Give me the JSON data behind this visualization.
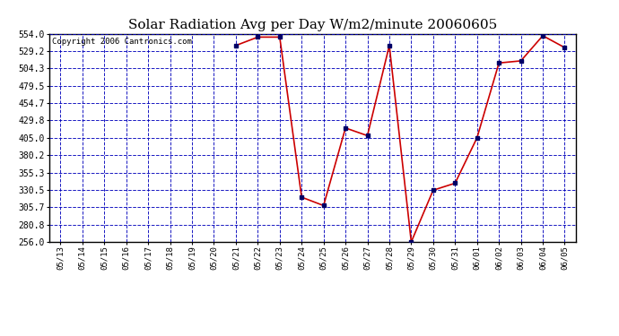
{
  "title": "Solar Radiation Avg per Day W/m2/minute 20060605",
  "copyright": "Copyright 2006 Cantronics.com",
  "dates": [
    "05/13",
    "05/14",
    "05/15",
    "05/16",
    "05/17",
    "05/18",
    "05/19",
    "05/20",
    "05/21",
    "05/22",
    "05/23",
    "05/24",
    "05/25",
    "05/26",
    "05/27",
    "05/28",
    "05/29",
    "05/30",
    "05/31",
    "06/01",
    "06/02",
    "06/03",
    "06/04",
    "06/05"
  ],
  "values": [
    null,
    null,
    null,
    null,
    null,
    null,
    null,
    null,
    537.0,
    549.0,
    549.0,
    320.0,
    308.0,
    419.0,
    408.0,
    537.0,
    256.0,
    330.0,
    340.0,
    405.0,
    512.0,
    515.0,
    551.0,
    534.0
  ],
  "ymin": 256.0,
  "ymax": 554.0,
  "yticks": [
    256.0,
    280.8,
    305.7,
    330.5,
    355.3,
    380.2,
    405.0,
    429.8,
    454.7,
    479.5,
    504.3,
    529.2,
    554.0
  ],
  "line_color": "#cc0000",
  "marker_color": "#000066",
  "background_color": "#ffffff",
  "plot_bg_color": "#ffffff",
  "grid_color": "#0000bb",
  "title_fontsize": 11,
  "copyright_fontsize": 6.5
}
